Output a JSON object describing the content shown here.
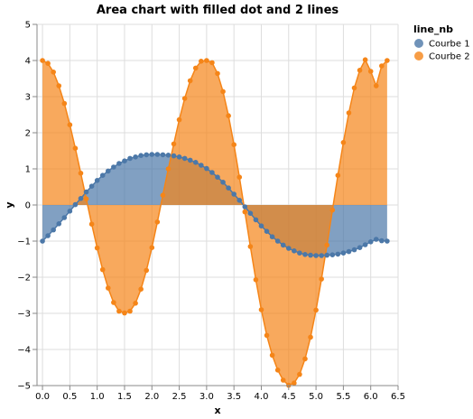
{
  "chart_data": {
    "type": "area",
    "title": "Area chart with filled dot and 2 lines",
    "xlabel": "x",
    "ylabel": "y",
    "xlim": [
      -0.1,
      6.5
    ],
    "ylim": [
      -5,
      5
    ],
    "x_ticks": [
      "0.0",
      "0.5",
      "1.0",
      "1.5",
      "2.0",
      "2.5",
      "3.0",
      "3.5",
      "4.0",
      "4.5",
      "5.0",
      "5.5",
      "6.0",
      "6.5"
    ],
    "y_ticks": [
      "−5",
      "−4",
      "−3",
      "−2",
      "−1",
      "0",
      "1",
      "2",
      "3",
      "4",
      "5"
    ],
    "grid": true,
    "legend": {
      "title": "line_nb",
      "placement": "top-right",
      "entries": [
        "Courbe 1",
        "Courbe 2"
      ]
    },
    "series": [
      {
        "name": "Courbe 1",
        "color": "#4c78a8",
        "x": [
          0.0,
          0.1,
          0.2,
          0.3,
          0.4,
          0.5,
          0.6,
          0.7,
          0.8,
          0.9,
          1.0,
          1.1,
          1.2,
          1.3,
          1.4,
          1.5,
          1.6,
          1.7,
          1.8,
          1.9,
          2.0,
          2.1,
          2.2,
          2.3,
          2.4,
          2.5,
          2.6,
          2.7,
          2.8,
          2.9,
          3.0,
          3.1,
          3.2,
          3.3,
          3.4,
          3.5,
          3.6,
          3.7,
          3.8,
          3.9,
          4.0,
          4.1,
          4.2,
          4.3,
          4.4,
          4.5,
          4.6,
          4.7,
          4.8,
          4.9,
          5.0,
          5.1,
          5.2,
          5.3,
          5.4,
          5.5,
          5.6,
          5.7,
          5.8,
          5.9,
          6.0,
          6.1,
          6.2,
          6.3
        ],
        "y": [
          -1.0,
          -0.85,
          -0.69,
          -0.52,
          -0.35,
          -0.17,
          0.01,
          0.18,
          0.36,
          0.52,
          0.68,
          0.82,
          0.94,
          1.05,
          1.15,
          1.22,
          1.29,
          1.33,
          1.37,
          1.39,
          1.4,
          1.4,
          1.39,
          1.38,
          1.36,
          1.33,
          1.29,
          1.24,
          1.18,
          1.1,
          1.01,
          0.9,
          0.77,
          0.63,
          0.47,
          0.3,
          0.13,
          -0.05,
          -0.23,
          -0.41,
          -0.58,
          -0.73,
          -0.88,
          -1.0,
          -1.11,
          -1.2,
          -1.27,
          -1.33,
          -1.37,
          -1.39,
          -1.4,
          -1.4,
          -1.39,
          -1.38,
          -1.36,
          -1.33,
          -1.29,
          -1.24,
          -1.18,
          -1.1,
          -1.02,
          -0.95,
          -0.99,
          -1.0
        ]
      },
      {
        "name": "Courbe 2",
        "color": "#f58518",
        "x": [
          0.0,
          0.1,
          0.2,
          0.3,
          0.4,
          0.5,
          0.6,
          0.7,
          0.8,
          0.9,
          1.0,
          1.1,
          1.2,
          1.3,
          1.4,
          1.5,
          1.6,
          1.7,
          1.8,
          1.9,
          2.0,
          2.1,
          2.2,
          2.3,
          2.4,
          2.5,
          2.6,
          2.7,
          2.8,
          2.9,
          3.0,
          3.1,
          3.2,
          3.3,
          3.4,
          3.5,
          3.6,
          3.7,
          3.8,
          3.9,
          4.0,
          4.1,
          4.2,
          4.3,
          4.4,
          4.5,
          4.6,
          4.7,
          4.8,
          4.9,
          5.0,
          5.1,
          5.2,
          5.3,
          5.4,
          5.5,
          5.6,
          5.7,
          5.8,
          5.9,
          6.0,
          6.1,
          6.2,
          6.3
        ],
        "y": [
          4.0,
          3.92,
          3.68,
          3.3,
          2.81,
          2.22,
          1.57,
          0.88,
          0.17,
          -0.53,
          -1.19,
          -1.79,
          -2.3,
          -2.7,
          -2.94,
          -2.99,
          -2.94,
          -2.72,
          -2.33,
          -1.81,
          -1.18,
          -0.47,
          0.27,
          1.0,
          1.69,
          2.36,
          2.95,
          3.44,
          3.79,
          3.98,
          4.0,
          3.94,
          3.64,
          3.14,
          2.47,
          1.67,
          0.77,
          -0.19,
          -1.15,
          -2.07,
          -2.9,
          -3.61,
          -4.16,
          -4.57,
          -4.85,
          -4.99,
          -4.93,
          -4.69,
          -4.26,
          -3.66,
          -2.91,
          -2.05,
          -1.11,
          -0.14,
          0.82,
          1.73,
          2.55,
          3.24,
          3.73,
          4.02,
          3.7,
          3.3,
          3.85,
          4.0
        ]
      }
    ]
  }
}
